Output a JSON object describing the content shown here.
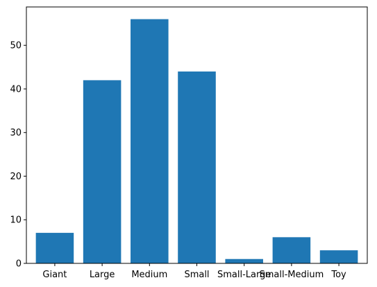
{
  "chart_data": {
    "type": "bar",
    "categories": [
      "Giant",
      "Large",
      "Medium",
      "Small",
      "Small-Large",
      "Small-Medium",
      "Toy"
    ],
    "values": [
      7,
      42,
      56,
      44,
      1,
      6,
      3
    ],
    "yticks": [
      0,
      10,
      20,
      30,
      40,
      50
    ],
    "ylim": [
      0,
      58.8
    ],
    "title": "",
    "xlabel": "",
    "ylabel": "",
    "grid": false,
    "bar_color": "#1f77b4"
  }
}
